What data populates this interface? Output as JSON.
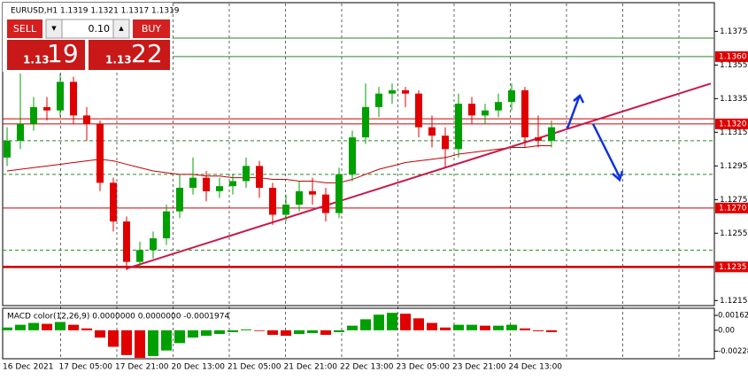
{
  "chart_data": {
    "type": "candlestick",
    "title": "EURUSD,H1  1.1319 1.1321 1.1317 1.1319",
    "candles": {
      "open": [
        1.13,
        1.131,
        1.132,
        1.133,
        1.1328,
        1.1345,
        1.1325,
        1.132,
        1.1285,
        1.1262,
        1.1238,
        1.1245,
        1.1252,
        1.1268,
        1.1282,
        1.1288,
        1.128,
        1.1283,
        1.1286,
        1.1295,
        1.1282,
        1.1266,
        1.1272,
        1.128,
        1.1278,
        1.1267,
        1.129,
        1.1312,
        1.133,
        1.1338,
        1.134,
        1.1338,
        1.1318,
        1.1313,
        1.1305,
        1.1332,
        1.1325,
        1.1328,
        1.1333,
        1.134,
        1.1312,
        1.131
      ],
      "high": [
        1.1318,
        1.135,
        1.1336,
        1.1336,
        1.135,
        1.1348,
        1.133,
        1.1322,
        1.1288,
        1.1265,
        1.125,
        1.1256,
        1.1272,
        1.129,
        1.13,
        1.1292,
        1.1288,
        1.129,
        1.13,
        1.1298,
        1.1285,
        1.1278,
        1.1286,
        1.1288,
        1.1282,
        1.1294,
        1.1316,
        1.1344,
        1.1342,
        1.1344,
        1.1342,
        1.134,
        1.1325,
        1.1318,
        1.1338,
        1.1336,
        1.1332,
        1.1338,
        1.1344,
        1.1342,
        1.1325,
        1.1322
      ],
      "low": [
        1.1295,
        1.1305,
        1.1316,
        1.1322,
        1.1324,
        1.132,
        1.131,
        1.128,
        1.1256,
        1.1233,
        1.1234,
        1.124,
        1.1248,
        1.1264,
        1.1278,
        1.1274,
        1.1276,
        1.1278,
        1.1282,
        1.1276,
        1.126,
        1.1262,
        1.1268,
        1.1272,
        1.1262,
        1.1264,
        1.1286,
        1.1308,
        1.1324,
        1.1332,
        1.133,
        1.1312,
        1.1306,
        1.1294,
        1.13,
        1.132,
        1.132,
        1.1324,
        1.1328,
        1.1306,
        1.1306,
        1.1306
      ],
      "close": [
        1.131,
        1.132,
        1.133,
        1.1328,
        1.1345,
        1.1325,
        1.132,
        1.1285,
        1.1262,
        1.1238,
        1.1245,
        1.1252,
        1.1268,
        1.1282,
        1.1288,
        1.128,
        1.1283,
        1.1286,
        1.1295,
        1.1282,
        1.1266,
        1.1272,
        1.128,
        1.1278,
        1.1267,
        1.129,
        1.1312,
        1.133,
        1.1338,
        1.134,
        1.1338,
        1.1318,
        1.1313,
        1.1305,
        1.1332,
        1.1325,
        1.1328,
        1.1333,
        1.134,
        1.1312,
        1.131,
        1.1318
      ]
    },
    "up_color": "#00a000",
    "down_color": "#e00000",
    "ma": {
      "color": "#c00000",
      "values": [
        1.1292,
        1.1293,
        1.1294,
        1.1295,
        1.1296,
        1.1297,
        1.1298,
        1.1299,
        1.1298,
        1.1296,
        1.1294,
        1.1292,
        1.1291,
        1.129,
        1.129,
        1.1289,
        1.1289,
        1.1288,
        1.1288,
        1.1288,
        1.1287,
        1.1287,
        1.1286,
        1.1286,
        1.1285,
        1.1285,
        1.1287,
        1.129,
        1.1293,
        1.1295,
        1.1297,
        1.1298,
        1.1299,
        1.13,
        1.1302,
        1.1303,
        1.1304,
        1.1305,
        1.1306,
        1.1306,
        1.1307,
        1.1307
      ]
    },
    "ylim": [
      1.1212,
      1.1391
    ],
    "yticks": [
      1.1375,
      1.1355,
      1.1335,
      1.1315,
      1.1295,
      1.1275,
      1.1255,
      1.1215
    ],
    "levels": [
      {
        "value": 1.1371,
        "color": "#2a8a2a",
        "style": "solid"
      },
      {
        "value": 1.136,
        "color": "#2a8a2a",
        "style": "solid",
        "label": "1.1360"
      },
      {
        "value": 1.1323,
        "color": "#cc0000",
        "style": "solid"
      },
      {
        "value": 1.132,
        "color": "#cc0000",
        "style": "solid",
        "label": "1.1320"
      },
      {
        "value": 1.131,
        "color": "#2a8a2a",
        "style": "dashed"
      },
      {
        "value": 1.129,
        "color": "#2a8a2a",
        "style": "dashed"
      },
      {
        "value": 1.127,
        "color": "#cc0000",
        "style": "solid",
        "label": "1.1270"
      },
      {
        "value": 1.1245,
        "color": "#2a8a2a",
        "style": "dashed"
      },
      {
        "value": 1.1235,
        "color": "#cc0000",
        "style": "thick",
        "label": "1.1235"
      }
    ],
    "trendline": {
      "color": "#c8184a",
      "from": [
        9,
        1.1234
      ],
      "to": [
        53,
        1.1344
      ]
    },
    "dates": [
      "16 Dec 2021",
      "17 Dec 05:00",
      "17 Dec 21:00",
      "20 Dec 13:00",
      "21 Dec 05:00",
      "21 Dec 21:00",
      "22 Dec 13:00",
      "23 Dec 05:00",
      "23 Dec 21:00",
      "24 Dec 13:00"
    ],
    "macd": {
      "label": "MACD color(12,26,9) 0.0000000 0.0000000 -0.0001974",
      "values": [
        0.0003,
        0.0006,
        0.0008,
        0.0007,
        0.0009,
        0.0006,
        0.0002,
        -0.0008,
        -0.0018,
        -0.0027,
        -0.003,
        -0.0028,
        -0.0022,
        -0.0014,
        -0.0008,
        -0.0006,
        -0.0004,
        -0.0002,
        0.0001,
        0.0,
        -0.0005,
        -0.0006,
        -0.0004,
        -0.0003,
        -0.0005,
        -0.0002,
        0.0005,
        0.0012,
        0.0017,
        0.0019,
        0.0018,
        0.0013,
        0.0008,
        0.0003,
        0.0006,
        0.0006,
        0.0005,
        0.0005,
        0.0006,
        0.0002,
        -0.0001,
        -0.0002
      ],
      "ylim": [
        -0.0031,
        0.0023
      ],
      "yticks": [
        0.00162,
        {
          "value": 0,
          "label": "0.00"
        },
        -0.00228
      ]
    }
  },
  "trade_panel": {
    "sell": "SELL",
    "buy": "BUY",
    "lot": "0.10",
    "bid_big": "1.13",
    "bid_small": "19",
    "ask_big": "1.13",
    "ask_small": "22"
  }
}
